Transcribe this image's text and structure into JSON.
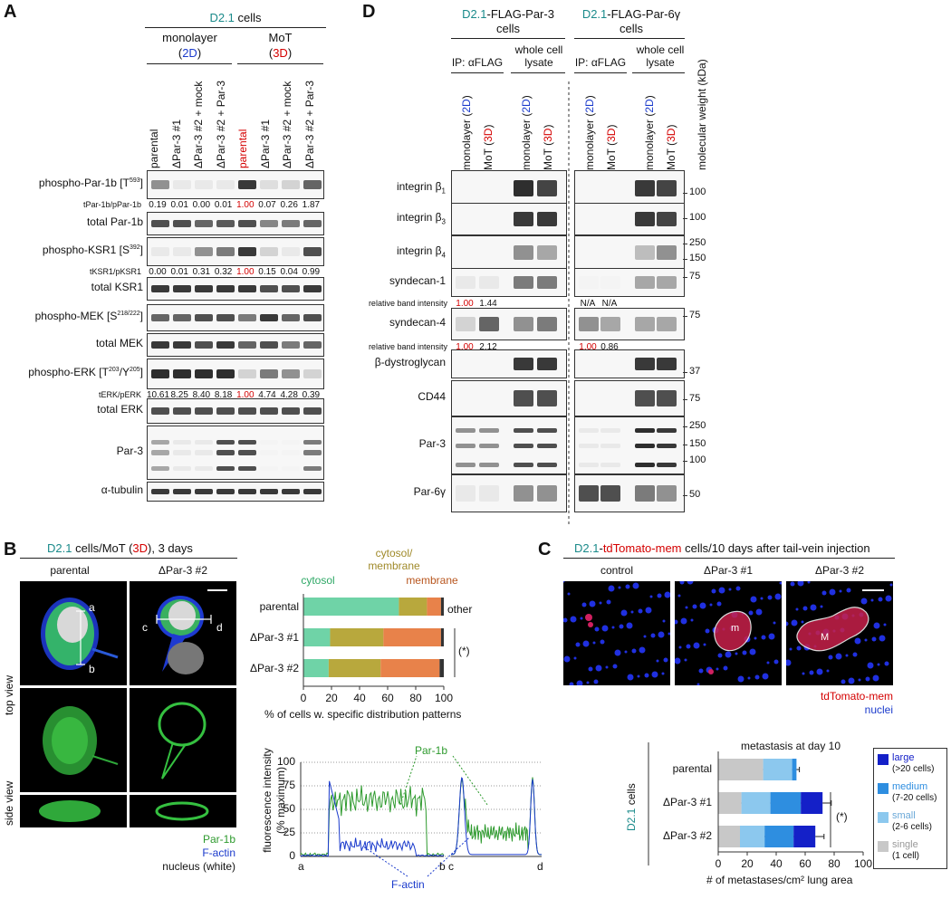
{
  "panels": {
    "A": "A",
    "B": "B",
    "C": "C",
    "D": "D"
  },
  "A": {
    "cell_line": "D2.1",
    "cells_word": "cells",
    "groups": [
      {
        "name": "monolayer",
        "tag": "2D"
      },
      {
        "name": "MoT",
        "tag": "3D"
      }
    ],
    "lanes": [
      "parental",
      "ΔPar-3 #1",
      "ΔPar-3 #2 + mock",
      "ΔPar-3 #2 + Par-3",
      "parental",
      "ΔPar-3 #1",
      "ΔPar-3 #2 + mock",
      "ΔPar-3 #2 + Par-3"
    ],
    "rows": [
      {
        "label": "phospho-Par-1b [T",
        "sup": "593",
        "end": "]"
      },
      {
        "label": "total Par-1b"
      },
      {
        "label": "phospho-KSR1 [S",
        "sup": "392",
        "end": "]"
      },
      {
        "label": "total KSR1"
      },
      {
        "label": "phospho-MEK [S",
        "sup": "218/222",
        "end": "]"
      },
      {
        "label": "total MEK"
      },
      {
        "label": "phospho-ERK [T",
        "sup": "203",
        "mid": "/Y",
        "sup2": "205",
        "end": "]"
      },
      {
        "label": "total ERK"
      },
      {
        "label": "Par-3"
      },
      {
        "label": "α-tubulin"
      }
    ],
    "ratios": [
      {
        "label": "tPar-1b/pPar-1b",
        "values": [
          "0.19",
          "0.01",
          "0.00",
          "0.01",
          "1.00",
          "0.07",
          "0.26",
          "1.87"
        ]
      },
      {
        "label": "tKSR1/pKSR1",
        "values": [
          "0.00",
          "0.01",
          "0.31",
          "0.32",
          "1.00",
          "0.15",
          "0.04",
          "0.99"
        ]
      },
      {
        "label": "tERK/pERK",
        "values": [
          "10.61",
          "8.25",
          "8.40",
          "8.18",
          "1.00",
          "4.74",
          "4.28",
          "0.39"
        ]
      }
    ]
  },
  "D": {
    "left_title": {
      "cell": "D2.1",
      "rest": "-FLAG-Par-3",
      "sub": "cells"
    },
    "right_title": {
      "cell": "D2.1",
      "rest": "-FLAG-Par-6γ",
      "sub": "cells"
    },
    "ip_label": "IP: αFLAG",
    "wcl_label1": "whole cell",
    "wcl_label2": "lysate",
    "lane_monolayer": "monolayer",
    "lane_mot": "MoT",
    "tag2d": "2D",
    "tag3d": "3D",
    "mw_label": "molecular weight (kDa)",
    "rows": [
      "integrin β",
      "integrin β",
      "integrin β",
      "syndecan-1",
      "syndecan-4",
      "β-dystroglycan",
      "CD44",
      "Par-3",
      "Par-6γ"
    ],
    "row_subs": [
      "1",
      "3",
      "4",
      "",
      "",
      "",
      "",
      "",
      ""
    ],
    "intensity_label": "relative band intensity",
    "synd1_left": [
      "1.00",
      "1.44"
    ],
    "synd1_right": [
      "N/A",
      "N/A"
    ],
    "synd4_left": [
      "1.00",
      "2.12"
    ],
    "synd4_right": [
      "1.00",
      "0.86"
    ],
    "mw_markers": [
      "100",
      "100",
      "250",
      "150",
      "75",
      "75",
      "37",
      "75",
      "250",
      "150",
      "100",
      "50"
    ]
  },
  "B": {
    "title_cell": "D2.1",
    "title_rest": " cells/MoT (",
    "title_tag": "3D",
    "title_end": "), 3 days",
    "col1": "parental",
    "col2": "ΔPar-3 #2",
    "line_labels": [
      "a",
      "b",
      "c",
      "d"
    ],
    "top_view": "top view",
    "side_view": "side view",
    "legend": [
      "Par-1b",
      "F-actin",
      "nucleus (white)"
    ],
    "chart_data": [
      {
        "type": "bar",
        "orientation": "horizontal-stacked",
        "categories": [
          "parental",
          "ΔPar-3 #1",
          "ΔPar-3 #2"
        ],
        "series": [
          {
            "name": "cytosol",
            "color": "#6fd3a7",
            "values": [
              68,
              19,
              18
            ]
          },
          {
            "name": "cytosol/ membrane",
            "color": "#b8a83d",
            "values": [
              20,
              38,
              37
            ]
          },
          {
            "name": "membrane",
            "color": "#e8824a",
            "values": [
              10,
              41,
              42
            ]
          },
          {
            "name": "other",
            "color": "#333333",
            "values": [
              2,
              2,
              3
            ]
          }
        ],
        "xlabel": "% of cells w. specific distribution patterns",
        "xlim": [
          0,
          100
        ],
        "xticks": [
          "0",
          "20",
          "40",
          "60",
          "80",
          "100"
        ],
        "significance": "(*)"
      },
      {
        "type": "line",
        "ylabel_1": "fluorescence intensity",
        "ylabel_2": "(% maximum)",
        "yticks": [
          "0",
          "25",
          "50",
          "75",
          "100"
        ],
        "ylim": [
          0,
          100
        ],
        "xlabels_left": [
          "a",
          "b"
        ],
        "xlabels_right": [
          "c",
          "d"
        ],
        "series": [
          {
            "name": "Par-1b",
            "color": "#2e9a2e"
          },
          {
            "name": "F-actin",
            "color": "#1a3acc"
          }
        ]
      }
    ]
  },
  "C": {
    "title_cell": "D2.1",
    "title_dash": "-",
    "title_marker": "tdTomato-mem",
    "title_rest": " cells/10 days after tail-vein injection",
    "cols": [
      "control",
      "ΔPar-3 #1",
      "ΔPar-3 #2"
    ],
    "marks": [
      "m",
      "M"
    ],
    "legend": [
      "tdTomato-mem",
      "nuclei"
    ],
    "chart_data": {
      "type": "bar",
      "orientation": "horizontal-stacked",
      "title": "metastasis at day 10",
      "ylabel_cell": "D2.1",
      "ylabel_rest": " cells",
      "categories": [
        "parental",
        "ΔPar-3 #1",
        "ΔPar-3 #2"
      ],
      "series": [
        {
          "name": "single",
          "sub": "(1 cell)",
          "color": "#c8c8c8",
          "values": [
            31,
            16,
            15
          ]
        },
        {
          "name": "small",
          "sub": "(2-6 cells)",
          "color": "#8cc8ee",
          "values": [
            20,
            20,
            17
          ]
        },
        {
          "name": "medium",
          "sub": "(7-20 cells)",
          "color": "#2e8ee0",
          "values": [
            3,
            21,
            20
          ]
        },
        {
          "name": "large",
          "sub": "(>20 cells)",
          "color": "#1420c8",
          "values": [
            0,
            15,
            15
          ]
        }
      ],
      "xlabel": "# of metastases/cm² lung area",
      "xlim": [
        0,
        100
      ],
      "xticks": [
        "0",
        "20",
        "40",
        "60",
        "80",
        "100"
      ],
      "significance": "(*)"
    }
  }
}
